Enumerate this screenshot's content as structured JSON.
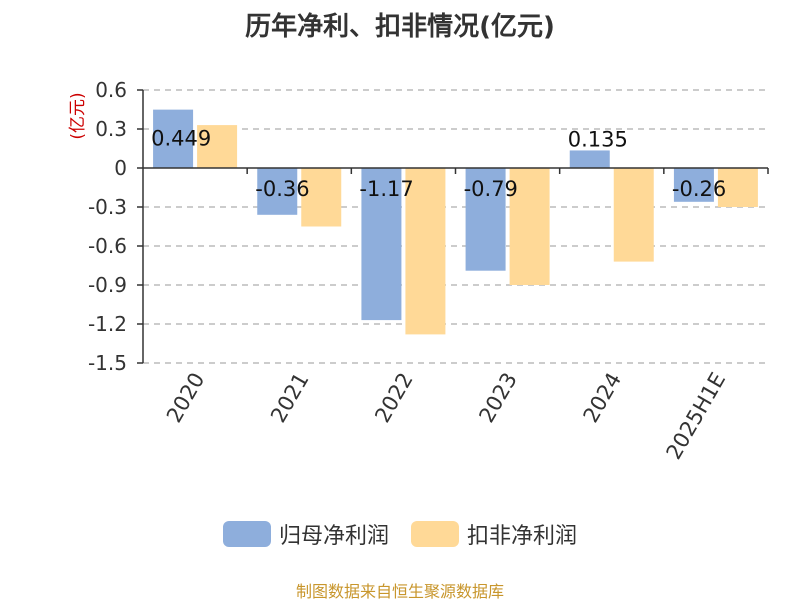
{
  "chart_data": {
    "type": "bar",
    "title": "历年净利、扣非情况(亿元)",
    "unit_label": "(亿元)",
    "categories": [
      "2020",
      "2021",
      "2022",
      "2023",
      "2024",
      "2025H1E"
    ],
    "series": [
      {
        "name": "归母净利润",
        "color": "#8eaedc",
        "values": [
          0.449,
          -0.36,
          -1.17,
          -0.79,
          0.135,
          -0.26
        ],
        "labels": [
          "0.449",
          "-0.36",
          "-1.17",
          "-0.79",
          "0.135",
          "-0.26"
        ]
      },
      {
        "name": "扣非净利润",
        "color": "#ffd997",
        "values": [
          0.33,
          -0.45,
          -1.28,
          -0.9,
          -0.72,
          -0.3
        ]
      }
    ],
    "ylim": [
      -1.5,
      0.6
    ],
    "yticks": [
      "0.6",
      "0.3",
      "0",
      "-0.3",
      "-0.6",
      "-0.9",
      "-1.2",
      "-1.5"
    ],
    "grid": true,
    "legend_position": "bottom"
  },
  "source_text": "制图数据来自恒生聚源数据库",
  "colors": {
    "title": "#333333",
    "unit_label": "#cc0000",
    "source": "#c8962c"
  }
}
